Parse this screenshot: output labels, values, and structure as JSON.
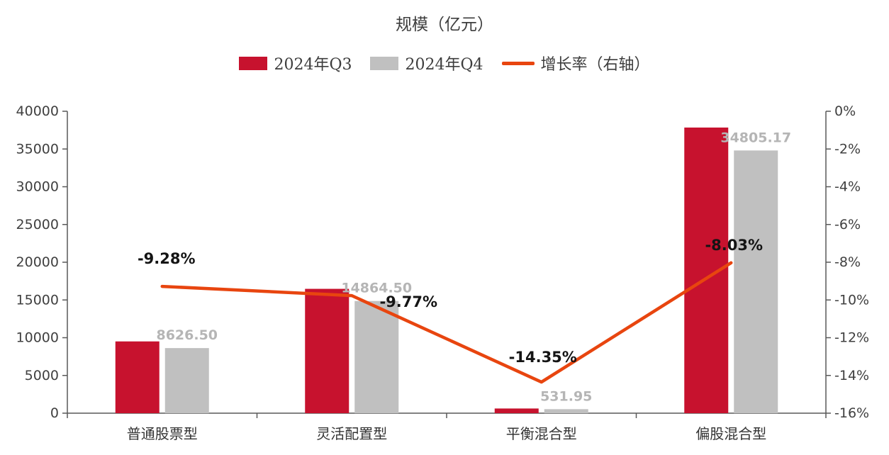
{
  "title": "规模（亿元）",
  "legend": [
    {
      "label": "2024年Q3",
      "swatch": "bar",
      "color": "#c7122e"
    },
    {
      "label": "2024年Q4",
      "swatch": "bar",
      "color": "#c0c0c0"
    },
    {
      "label": "增长率（右轴）",
      "swatch": "line",
      "color": "#e8450f"
    }
  ],
  "colors": {
    "q3_bar": "#c7122e",
    "q4_bar": "#c0c0c0",
    "growth_line": "#e8450f",
    "axis": "#595959"
  },
  "chart_data": {
    "type": "bar",
    "subtype": "grouped bars with growth-rate line on secondary axis",
    "title": "规模（亿元）",
    "categories": [
      "普通股票型",
      "灵活配置型",
      "平衡混合型",
      "偏股混合型"
    ],
    "series": [
      {
        "name": "2024年Q3",
        "type": "bar",
        "axis": "left",
        "color": "#c7122e",
        "values": [
          9509,
          16474,
          621,
          37844
        ]
      },
      {
        "name": "2024年Q4",
        "type": "bar",
        "axis": "left",
        "color": "#c0c0c0",
        "values": [
          8626.5,
          14864.5,
          531.95,
          34805.17
        ],
        "labels": [
          "8626.50",
          "14864.50",
          "531.95",
          "34805.17"
        ]
      },
      {
        "name": "增长率（右轴）",
        "type": "line",
        "axis": "right",
        "color": "#e8450f",
        "values": [
          -9.28,
          -9.77,
          -14.35,
          -8.03
        ],
        "labels": [
          "-9.28%",
          "-9.77%",
          "-14.35%",
          "-8.03%"
        ]
      }
    ],
    "left_axis": {
      "min": 0,
      "max": 40000,
      "step": 5000,
      "tick_values": [
        0,
        5000,
        10000,
        15000,
        20000,
        25000,
        30000,
        35000,
        40000
      ],
      "tick_labels": [
        "0",
        "5000",
        "10000",
        "15000",
        "20000",
        "25000",
        "30000",
        "35000",
        "40000"
      ]
    },
    "right_axis": {
      "min": -16,
      "max": 0,
      "step": -2,
      "tick_values": [
        0,
        -2,
        -4,
        -6,
        -8,
        -10,
        -12,
        -14,
        -16
      ],
      "tick_labels": [
        "0%",
        "-2%",
        "-4%",
        "-6%",
        "-8%",
        "-10%",
        "-12%",
        "-14%",
        "-16%"
      ]
    },
    "grid": false,
    "legend_position": "top"
  }
}
